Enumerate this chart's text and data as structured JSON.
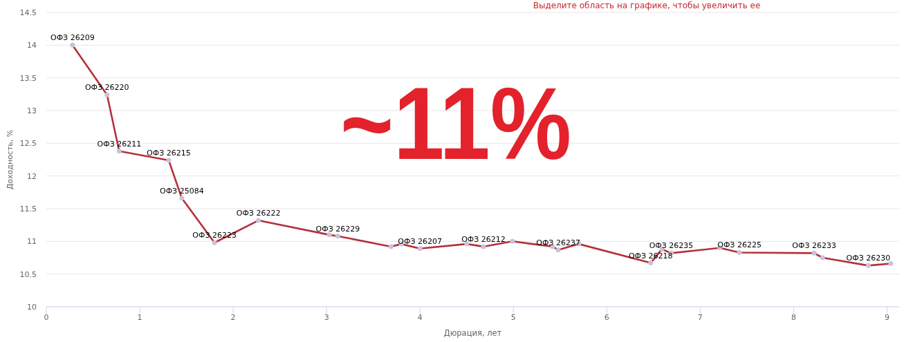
{
  "chart_data": {
    "type": "line",
    "title": "Выделите область на графике, чтобы увеличить ее",
    "xlabel": "Дюрация, лет",
    "ylabel": "Доходность, %",
    "x": [
      0.28,
      0.65,
      0.78,
      1.31,
      1.45,
      1.8,
      2.27,
      3.03,
      3.12,
      3.69,
      3.8,
      4.0,
      4.5,
      4.68,
      4.99,
      5.42,
      5.48,
      5.7,
      6.47,
      6.59,
      6.69,
      7.21,
      7.42,
      8.22,
      8.31,
      8.8,
      9.04
    ],
    "series": [
      {
        "color": "#b5303a",
        "values": [
          14.0,
          13.24,
          12.38,
          12.24,
          11.66,
          10.98,
          11.32,
          11.1,
          11.08,
          10.92,
          10.96,
          10.89,
          10.96,
          10.92,
          11.0,
          10.92,
          10.87,
          10.96,
          10.67,
          10.88,
          10.82,
          10.9,
          10.83,
          10.82,
          10.75,
          10.63,
          10.66
        ]
      }
    ],
    "xlim": [
      0,
      9.13
    ],
    "ylim": [
      10,
      14.5
    ],
    "xticks": [
      0,
      1,
      2,
      3,
      4,
      5,
      6,
      7,
      8,
      9
    ],
    "yticks": [
      10,
      10.5,
      11,
      11.5,
      12,
      12.5,
      13,
      13.5,
      14,
      14.5
    ],
    "grid": "y",
    "marker": "circle",
    "line_style": "solid",
    "annotations": [
      "~11%",
      {
        "text": "ОФЗ 26209",
        "x": 0.28,
        "y": 14.0
      },
      {
        "text": "ОФЗ 26220",
        "x": 0.65,
        "y": 13.24
      },
      {
        "text": "ОФЗ 26211",
        "x": 0.78,
        "y": 12.38
      },
      {
        "text": "ОФЗ 26215",
        "x": 1.31,
        "y": 12.24
      },
      {
        "text": "ОФЗ 25084",
        "x": 1.45,
        "y": 11.66
      },
      {
        "text": "ОФЗ 26223",
        "x": 1.8,
        "y": 10.98
      },
      {
        "text": "ОФЗ 26222",
        "x": 2.27,
        "y": 11.32
      },
      {
        "text": "ОФЗ 26229",
        "x": 3.12,
        "y": 11.08
      },
      {
        "text": "ОФЗ 26207",
        "x": 4.0,
        "y": 10.89
      },
      {
        "text": "ОФЗ 26212",
        "x": 4.68,
        "y": 10.92
      },
      {
        "text": "ОФЗ 26237",
        "x": 5.48,
        "y": 10.87
      },
      {
        "text": "ОФЗ 26218",
        "x": 6.47,
        "y": 10.67
      },
      {
        "text": "ОФЗ 26235",
        "x": 6.69,
        "y": 10.82
      },
      {
        "text": "ОФЗ 26225",
        "x": 7.42,
        "y": 10.83
      },
      {
        "text": "ОФЗ 26233",
        "x": 8.22,
        "y": 10.82
      },
      {
        "text": "ОФЗ 26230",
        "x": 8.8,
        "y": 10.63
      }
    ]
  }
}
